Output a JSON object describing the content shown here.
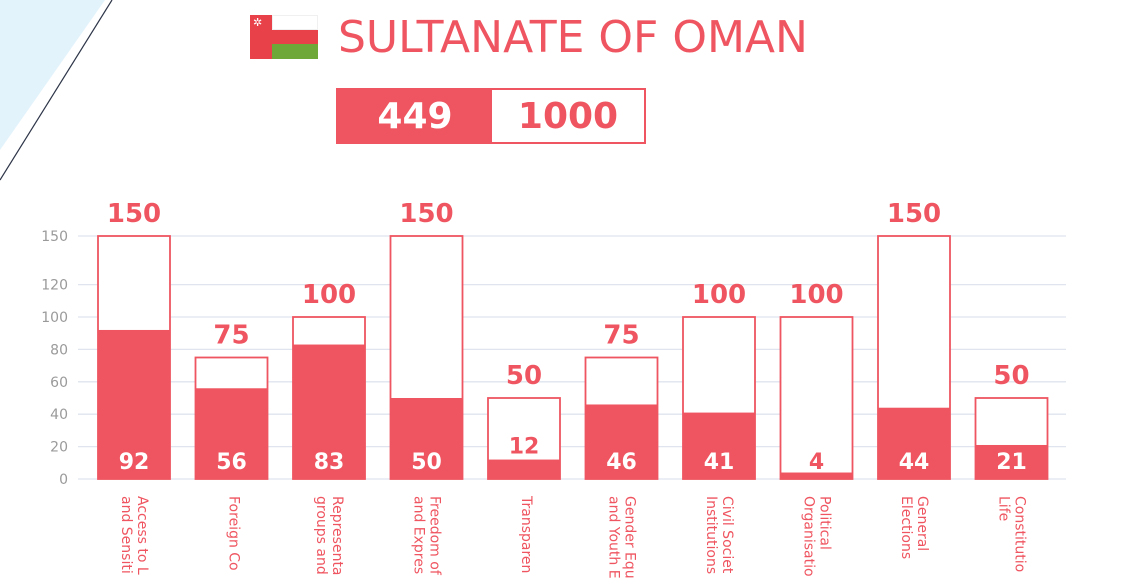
{
  "header": {
    "title": "SULTANATE OF OMAN",
    "score": "449",
    "total": "1000",
    "flag_icon": "oman-flag-icon"
  },
  "colors": {
    "accent": "#ef5560",
    "grid": "#dfe4ee",
    "axis_text": "#9a9a9a",
    "decor": "#e3f3fb"
  },
  "chart_data": {
    "type": "bar",
    "categories": [
      "Access to L... and Sensiti...",
      "Foreign Co...",
      "Representa... groups and...",
      "Freedom of... and Expres...",
      "Transparen...",
      "Gender Equ... and Youth E...",
      "Civil Societ... Institutions",
      "Political Organisatio...",
      "General Elections",
      "Constitutio... Life"
    ],
    "label_lines": [
      [
        "Access to L",
        "and Sensiti"
      ],
      [
        "Foreign Co"
      ],
      [
        "Representa",
        "groups and"
      ],
      [
        "Freedom of",
        "and Expres"
      ],
      [
        "Transparen"
      ],
      [
        "Gender Equ",
        "and Youth E"
      ],
      [
        "Civil Societ",
        "Institutions"
      ],
      [
        "Political",
        "Organisatio"
      ],
      [
        "General",
        "Elections"
      ],
      [
        "Constitutio",
        "Life"
      ]
    ],
    "series": [
      {
        "name": "",
        "values": [
          92,
          56,
          83,
          50,
          12,
          46,
          41,
          4,
          44,
          21
        ]
      },
      {
        "name": "",
        "values": [
          150,
          75,
          100,
          150,
          50,
          75,
          100,
          100,
          150,
          50
        ]
      }
    ],
    "ylim": [
      0,
      150
    ],
    "yticks": [
      0,
      20,
      40,
      60,
      80,
      100,
      120,
      150
    ],
    "grid": true,
    "title": "",
    "xlabel": "",
    "ylabel": ""
  }
}
